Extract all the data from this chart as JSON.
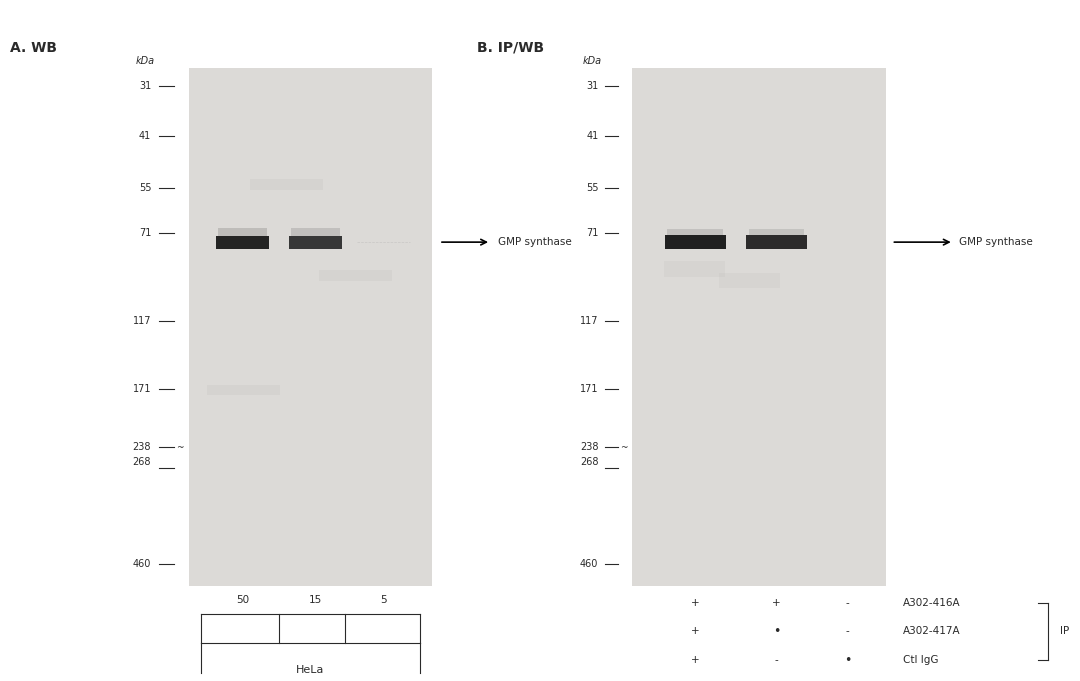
{
  "bg_color": "#f0efed",
  "white_bg": "#f5f4f2",
  "panel_a_title": "A. WB",
  "panel_b_title": "B. IP/WB",
  "mw_markers": [
    460,
    268,
    238,
    171,
    117,
    71,
    55,
    41,
    31
  ],
  "mw_labels": [
    "460",
    "268",
    "238",
    "171",
    "117",
    "71",
    "55",
    "41",
    "31"
  ],
  "band_label": "GMP synthase",
  "band_mw": 77,
  "panel_a_lanes": [
    "50",
    "15",
    "5"
  ],
  "panel_a_cell_line": "HeLa",
  "panel_b_labels": [
    "A302-416A",
    "A302-417A",
    "Ctl IgG"
  ],
  "panel_b_bracket": "IP",
  "text_color": "#2a2a2a",
  "band_color": "#1a1a1a",
  "gel_bg": "#dcdad7",
  "overall_bg": "#ffffff"
}
